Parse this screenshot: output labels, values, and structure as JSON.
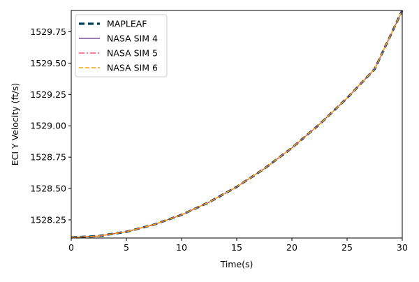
{
  "chart_data": {
    "type": "line",
    "title": "",
    "xlabel": "Time(s)",
    "ylabel": "ECI Y Velocity (ft/s)",
    "xlim": [
      0,
      30
    ],
    "ylim": [
      1528.105,
      1529.92
    ],
    "x_ticks": [
      0,
      5,
      10,
      15,
      20,
      25,
      30
    ],
    "y_ticks": [
      1528.25,
      1528.5,
      1528.75,
      1529.0,
      1529.25,
      1529.5,
      1529.75
    ],
    "x_tick_labels": [
      "0",
      "5",
      "10",
      "15",
      "20",
      "25",
      "30"
    ],
    "y_tick_labels": [
      "1528.25",
      "1528.50",
      "1528.75",
      "1529.00",
      "1529.25",
      "1529.50",
      "1529.75"
    ],
    "grid": false,
    "legend_position": "top-left",
    "x": [
      0,
      2.5,
      5,
      7.5,
      10,
      12.5,
      15,
      17.5,
      20,
      22.5,
      25,
      27.5,
      30
    ],
    "series": [
      {
        "name": "MAPLEAF",
        "color": "#003f5c",
        "dash": "dashed",
        "values": [
          1528.11,
          1528.121,
          1528.155,
          1528.212,
          1528.29,
          1528.391,
          1528.513,
          1528.658,
          1528.824,
          1529.012,
          1529.221,
          1529.452,
          1529.92
        ]
      },
      {
        "name": "NASA SIM 4",
        "color": "#7a5195",
        "dash": "solid",
        "values": [
          1528.11,
          1528.121,
          1528.155,
          1528.212,
          1528.29,
          1528.391,
          1528.513,
          1528.658,
          1528.824,
          1529.012,
          1529.221,
          1529.452,
          1529.92
        ]
      },
      {
        "name": "NASA SIM 5",
        "color": "#ef5675",
        "dash": "dashdot",
        "values": [
          1528.11,
          1528.121,
          1528.155,
          1528.212,
          1528.29,
          1528.391,
          1528.513,
          1528.658,
          1528.824,
          1529.012,
          1529.221,
          1529.452,
          1529.92
        ]
      },
      {
        "name": "NASA SIM 6",
        "color": "#ffa600",
        "dash": "dashed",
        "values": [
          1528.11,
          1528.121,
          1528.155,
          1528.212,
          1528.29,
          1528.391,
          1528.513,
          1528.658,
          1528.824,
          1529.012,
          1529.221,
          1529.452,
          1529.92
        ]
      }
    ]
  }
}
